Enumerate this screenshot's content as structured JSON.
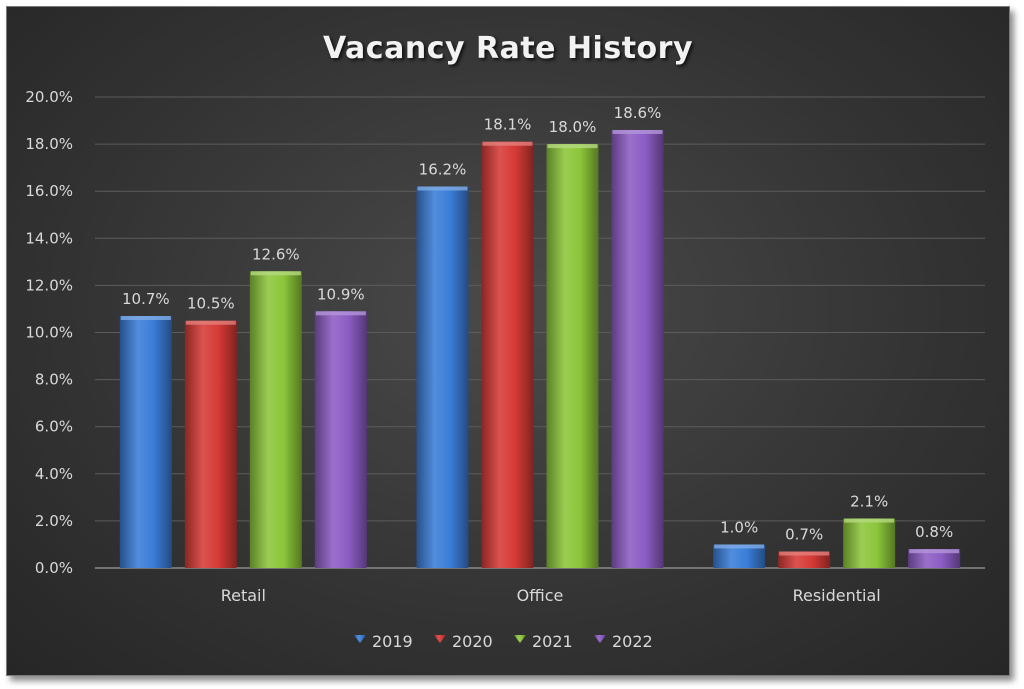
{
  "chart_data": {
    "type": "bar",
    "title": "Vacancy Rate History",
    "categories": [
      "Retail",
      "Office",
      "Residential"
    ],
    "series": [
      {
        "name": "2019",
        "values": [
          10.7,
          16.2,
          1.0
        ],
        "color": "#3a7dd8"
      },
      {
        "name": "2020",
        "values": [
          10.5,
          18.1,
          0.7
        ],
        "color": "#d63a36"
      },
      {
        "name": "2021",
        "values": [
          12.6,
          18.0,
          2.1
        ],
        "color": "#8cc63a"
      },
      {
        "name": "2022",
        "values": [
          10.9,
          18.6,
          0.8
        ],
        "color": "#8c5cc4"
      }
    ],
    "ylim": [
      0,
      20
    ],
    "yticks": [
      "0.0%",
      "2.0%",
      "4.0%",
      "6.0%",
      "8.0%",
      "10.0%",
      "12.0%",
      "14.0%",
      "16.0%",
      "18.0%",
      "20.0%"
    ],
    "data_labels": [
      [
        "10.7%",
        "16.2%",
        "1.0%"
      ],
      [
        "10.5%",
        "18.1%",
        "0.7%"
      ],
      [
        "12.6%",
        "18.0%",
        "2.1%"
      ],
      [
        "10.9%",
        "18.6%",
        "0.8%"
      ]
    ],
    "grid": true,
    "legend_position": "bottom"
  }
}
